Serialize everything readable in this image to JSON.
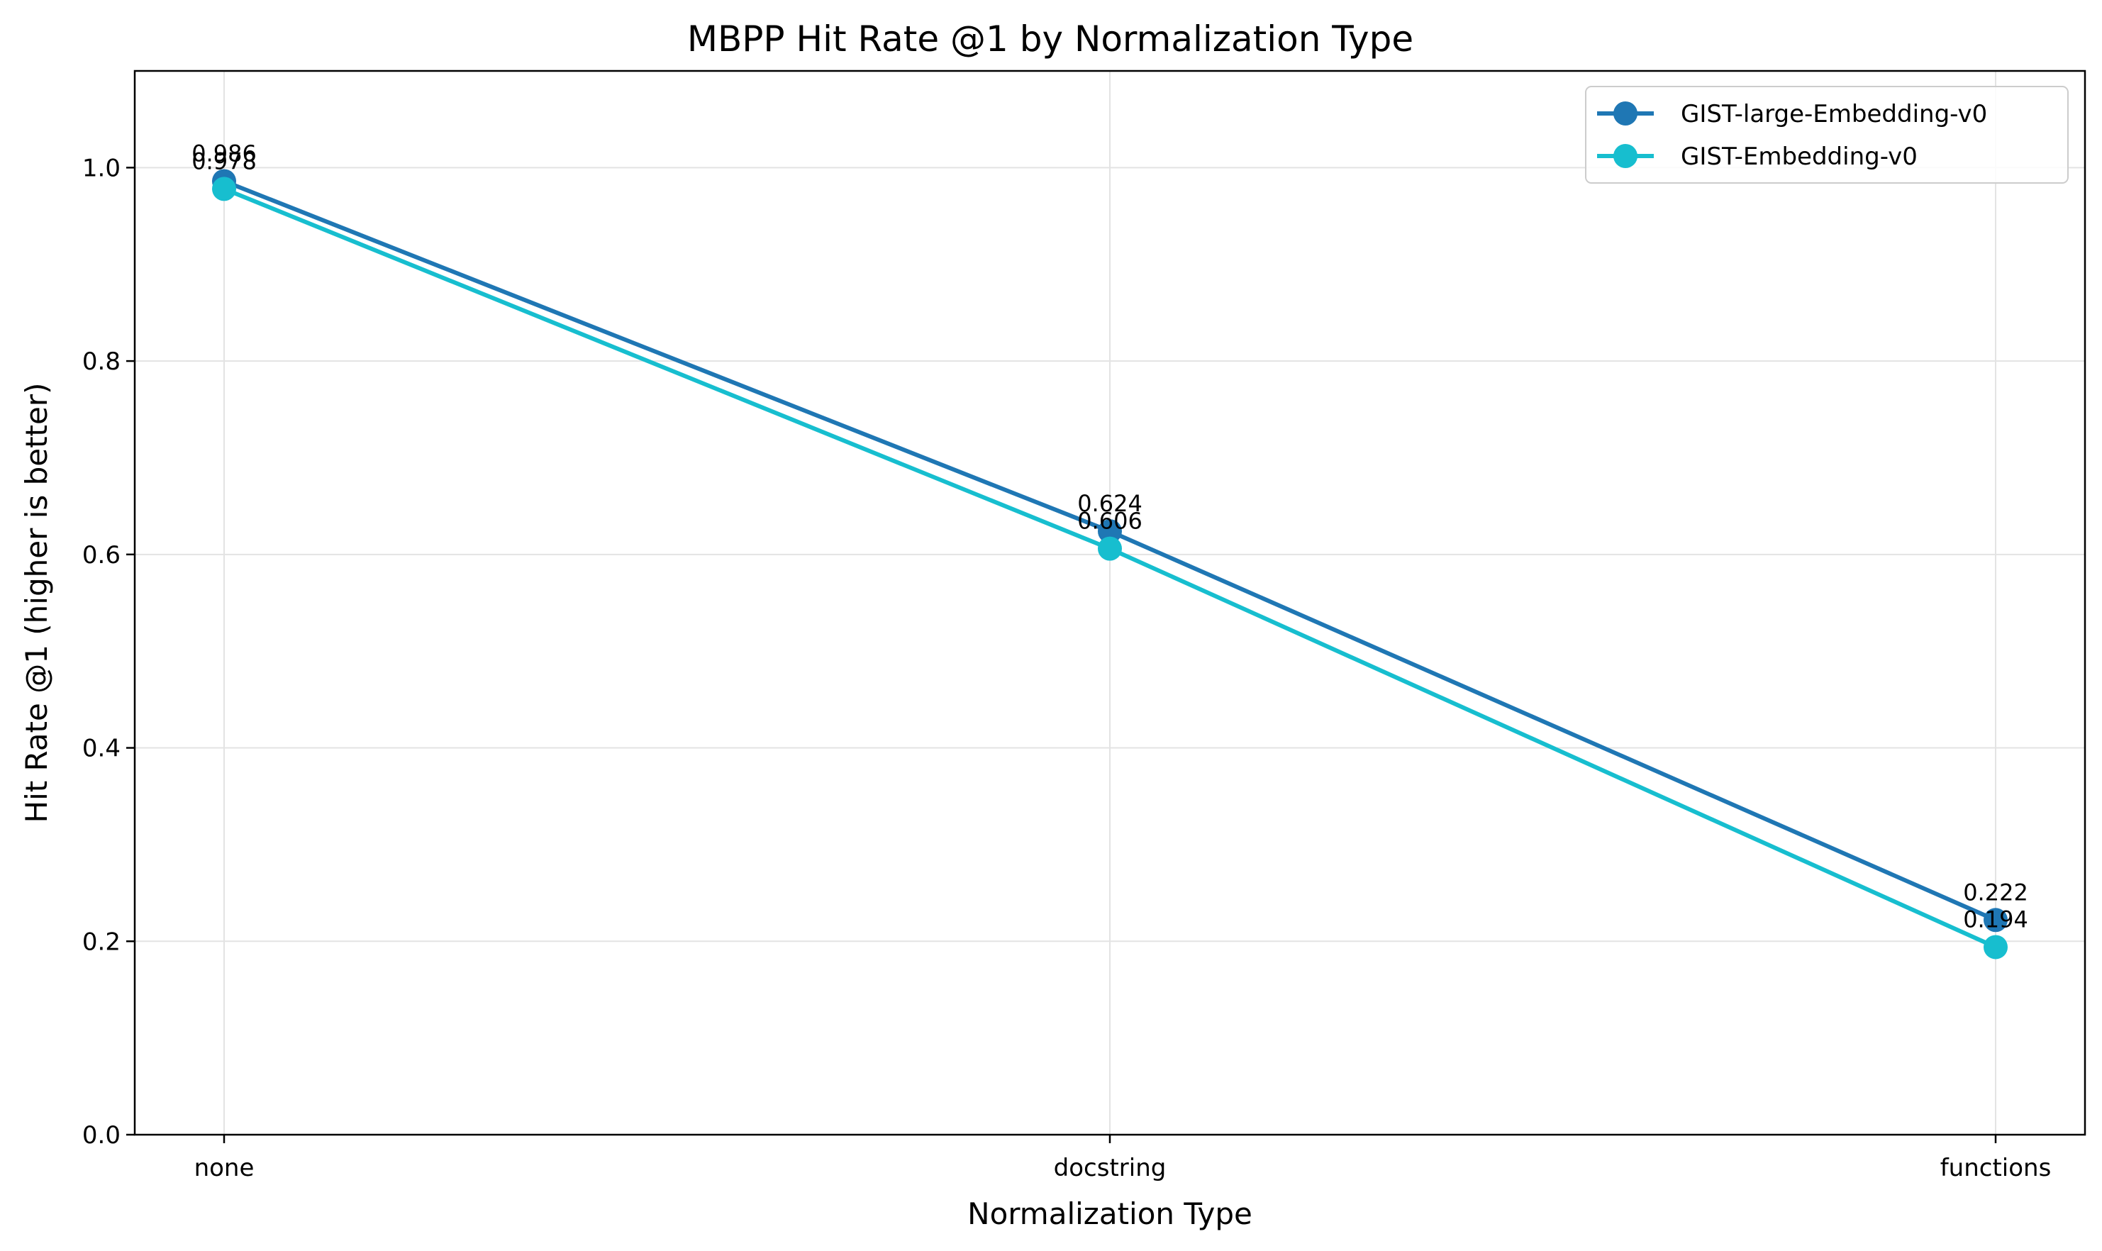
{
  "chart_data": {
    "type": "line",
    "title": "MBPP Hit Rate @1 by Normalization Type",
    "xlabel": "Normalization Type",
    "ylabel": "Hit Rate @1 (higher is better)",
    "categories": [
      "none",
      "docstring",
      "functions"
    ],
    "ylim": [
      0,
      1.1
    ],
    "yticks": [
      "0.0",
      "0.2",
      "0.4",
      "0.6",
      "0.8",
      "1.0"
    ],
    "grid": true,
    "legend_position": "top-right",
    "series": [
      {
        "name": "GIST-large-Embedding-v0",
        "color": "#1f77b4",
        "values": [
          0.986,
          0.624,
          0.222
        ],
        "labels": [
          "0.986",
          "0.624",
          "0.222"
        ]
      },
      {
        "name": "GIST-Embedding-v0",
        "color": "#17becf",
        "values": [
          0.978,
          0.606,
          0.194
        ],
        "labels": [
          "0.978",
          "0.606",
          "0.194"
        ]
      }
    ]
  }
}
